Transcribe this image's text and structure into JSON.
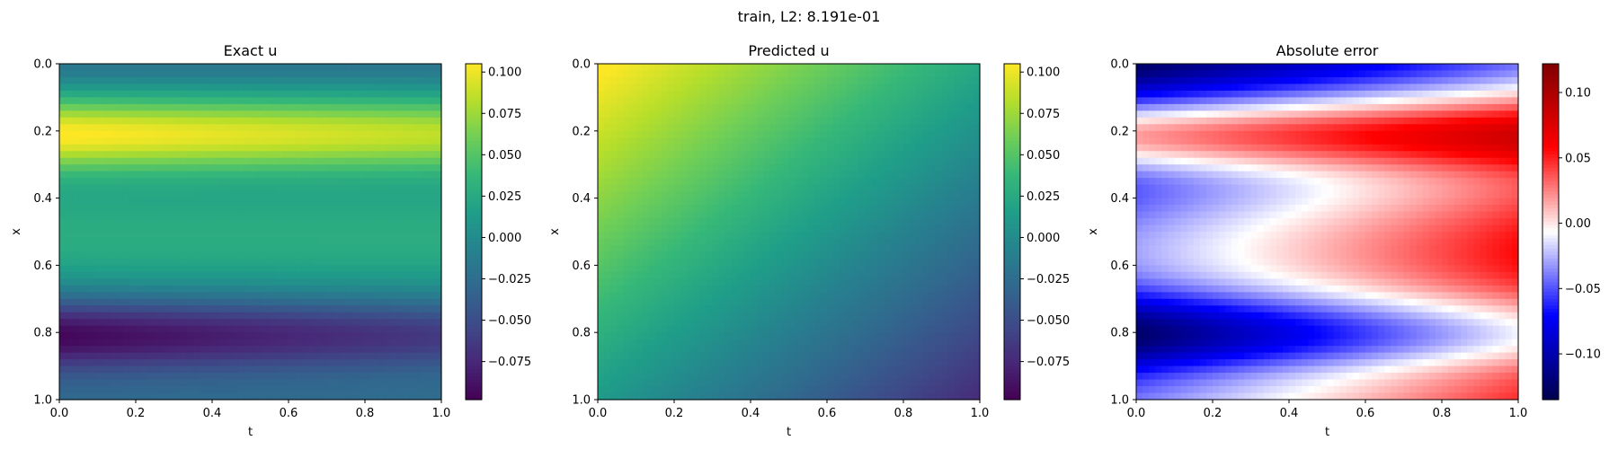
{
  "suptitle": "train, L2: 8.191e-01",
  "chart_data": [
    {
      "type": "heatmap",
      "title": "Exact u",
      "xlabel": "t",
      "ylabel": "x",
      "xlim": [
        0.0,
        1.0
      ],
      "ylim": [
        1.0,
        0.0
      ],
      "x_ticks": [
        "0.0",
        "0.2",
        "0.4",
        "0.6",
        "0.8",
        "1.0"
      ],
      "y_ticks": [
        "0.0",
        "0.2",
        "0.4",
        "0.6",
        "0.8",
        "1.0"
      ],
      "colormap": "viridis",
      "color_range": [
        -0.098,
        0.105
      ],
      "colorbar_ticks": [
        "0.100",
        "0.075",
        "0.050",
        "0.025",
        "0.000",
        "−0.025",
        "−0.050",
        "−0.075"
      ],
      "colorbar_tick_values": [
        0.1,
        0.075,
        0.05,
        0.025,
        0.0,
        -0.025,
        -0.05,
        -0.075
      ]
    },
    {
      "type": "heatmap",
      "title": "Predicted u",
      "xlabel": "t",
      "ylabel": "x",
      "xlim": [
        0.0,
        1.0
      ],
      "ylim": [
        1.0,
        0.0
      ],
      "x_ticks": [
        "0.0",
        "0.2",
        "0.4",
        "0.6",
        "0.8",
        "1.0"
      ],
      "y_ticks": [
        "0.0",
        "0.2",
        "0.4",
        "0.6",
        "0.8",
        "1.0"
      ],
      "colormap": "viridis",
      "color_range": [
        -0.098,
        0.105
      ],
      "colorbar_ticks": [
        "0.100",
        "0.075",
        "0.050",
        "0.025",
        "0.000",
        "−0.025",
        "−0.050",
        "−0.075"
      ],
      "colorbar_tick_values": [
        0.1,
        0.075,
        0.05,
        0.025,
        0.0,
        -0.025,
        -0.05,
        -0.075
      ]
    },
    {
      "type": "heatmap",
      "title": "Absolute error",
      "xlabel": "t",
      "ylabel": "x",
      "xlim": [
        0.0,
        1.0
      ],
      "ylim": [
        1.0,
        0.0
      ],
      "x_ticks": [
        "0.0",
        "0.2",
        "0.4",
        "0.6",
        "0.8",
        "1.0"
      ],
      "y_ticks": [
        "0.0",
        "0.2",
        "0.4",
        "0.6",
        "0.8",
        "1.0"
      ],
      "colormap": "seismic",
      "color_range": [
        -0.135,
        0.122
      ],
      "colorbar_ticks": [
        "0.10",
        "0.05",
        "0.00",
        "−0.05",
        "−0.10"
      ],
      "colorbar_tick_values": [
        0.1,
        0.05,
        0.0,
        -0.05,
        -0.1
      ]
    }
  ]
}
